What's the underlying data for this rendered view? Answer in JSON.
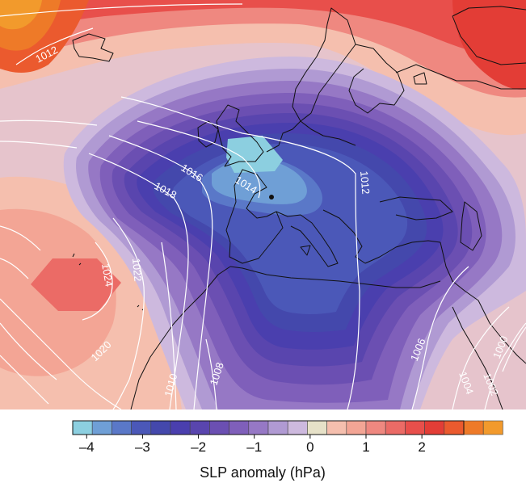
{
  "map": {
    "isobar_labels": [
      "1012",
      "1012",
      "1014",
      "1016",
      "1018",
      "1020",
      "1022",
      "1024",
      "1010",
      "1008",
      "1006",
      "1004",
      "1002",
      "1000"
    ]
  },
  "colorbar": {
    "title": "SLP anomaly (hPa)",
    "tick_labels": [
      "–4",
      "–3",
      "–2",
      "–1",
      "0",
      "1",
      "2"
    ],
    "tick_values": [
      -4,
      -3,
      -2,
      -1,
      0,
      1,
      2
    ],
    "range": [
      -4.25,
      2.75
    ],
    "bin_width": 0.35,
    "colors": [
      "#8ccfe0",
      "#6f9fd6",
      "#5a78c8",
      "#4b58b8",
      "#4448ac",
      "#4a3fae",
      "#5945ae",
      "#6b4fb2",
      "#7f5fba",
      "#9678c5",
      "#b09ad3",
      "#cdb9de",
      "#e6e1c8",
      "#f5bfae",
      "#f3a595",
      "#ef8880",
      "#eb6b66",
      "#e84f4b",
      "#e33d36",
      "#eb5a2e",
      "#ee7a28",
      "#f29a2c"
    ]
  }
}
